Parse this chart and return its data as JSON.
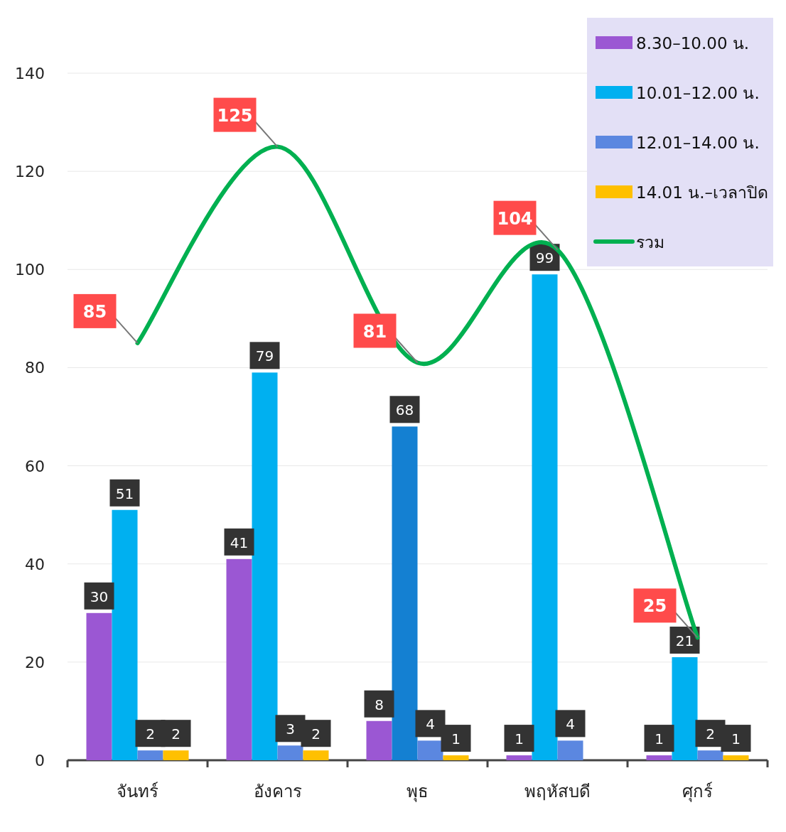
{
  "chart_data": {
    "type": "bar",
    "categories": [
      "จันทร์",
      "อังคาร",
      "พุธ",
      "พฤหัสบดี",
      "ศุกร์"
    ],
    "series": [
      {
        "name": "8.30–10.00 น.",
        "color": "#9b57d3",
        "values": [
          30,
          41,
          8,
          1,
          1
        ]
      },
      {
        "name": "10.01–12.00 น.",
        "color": "#00b0f0",
        "colors": [
          "#00b0f0",
          "#00b0f0",
          "#1480d2",
          "#00b0f0",
          "#00b0f0"
        ],
        "values": [
          51,
          79,
          68,
          99,
          21
        ]
      },
      {
        "name": "12.01–14.00 น.",
        "color": "#5b87e0",
        "values": [
          2,
          3,
          4,
          4,
          2
        ]
      },
      {
        "name": "14.01 น.–เวลาปิด",
        "color": "#ffc000",
        "values": [
          2,
          2,
          1,
          null,
          1
        ]
      },
      {
        "name": "รวม",
        "type": "line",
        "color": "#00b050",
        "values": [
          85,
          125,
          81,
          104,
          25
        ]
      }
    ],
    "ylim": [
      0,
      140
    ],
    "yticks": [
      0,
      20,
      40,
      60,
      80,
      100,
      120,
      140
    ],
    "grid": "y",
    "legend": "top right",
    "data_labels": true
  }
}
